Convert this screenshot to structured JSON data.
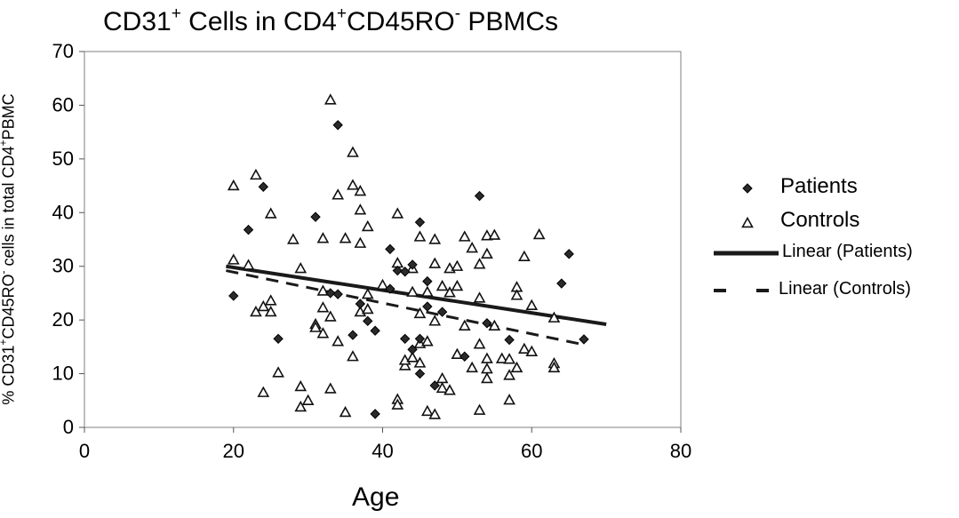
{
  "chart_data": {
    "type": "scatter",
    "title_parts": [
      "CD31",
      "+",
      " Cells in CD4",
      "+",
      "CD45RO",
      "-",
      " PBMCs"
    ],
    "xlabel": "Age",
    "ylabel_parts": [
      "% CD31",
      "+",
      "CD45RO",
      "-",
      " cells in total CD4",
      "+",
      "PBMC"
    ],
    "xlim": [
      0,
      80
    ],
    "ylim": [
      0,
      70
    ],
    "xticks": [
      "0",
      "20",
      "40",
      "60",
      "80"
    ],
    "yticks": [
      "0",
      "10",
      "20",
      "30",
      "40",
      "50",
      "60",
      "70"
    ],
    "grid": false,
    "legend_position": "right",
    "series": [
      {
        "name": "Patients",
        "marker": "diamond",
        "color": "#222222",
        "points": [
          [
            20,
            24.5
          ],
          [
            22,
            36.8
          ],
          [
            24,
            44.8
          ],
          [
            26,
            16.5
          ],
          [
            31,
            39.2
          ],
          [
            33,
            25
          ],
          [
            34,
            56.3
          ],
          [
            34,
            24.8
          ],
          [
            36,
            17.2
          ],
          [
            37,
            23
          ],
          [
            38,
            19.8
          ],
          [
            39,
            18
          ],
          [
            39,
            2.5
          ],
          [
            41,
            25.8
          ],
          [
            41,
            33.2
          ],
          [
            42,
            29.2
          ],
          [
            43,
            16.5
          ],
          [
            43,
            29
          ],
          [
            44,
            14.5
          ],
          [
            44,
            30.3
          ],
          [
            45,
            38.2
          ],
          [
            45,
            10
          ],
          [
            45,
            16.5
          ],
          [
            46,
            27.2
          ],
          [
            46,
            22.5
          ],
          [
            47,
            7.8
          ],
          [
            48,
            21.5
          ],
          [
            51,
            13.2
          ],
          [
            53,
            43.1
          ],
          [
            54,
            19.4
          ],
          [
            57,
            16.3
          ],
          [
            64,
            26.8
          ],
          [
            65,
            32.3
          ],
          [
            67,
            16.4
          ]
        ]
      },
      {
        "name": "Controls",
        "marker": "triangle",
        "color": "#222222",
        "points": [
          [
            20,
            45
          ],
          [
            20,
            31.2
          ],
          [
            22,
            30.2
          ],
          [
            23,
            47
          ],
          [
            23,
            21.5
          ],
          [
            24,
            6.5
          ],
          [
            24,
            22.5
          ],
          [
            25,
            39.8
          ],
          [
            25,
            21.5
          ],
          [
            25,
            23.6
          ],
          [
            26,
            10.2
          ],
          [
            28,
            35
          ],
          [
            29,
            29.6
          ],
          [
            29,
            7.6
          ],
          [
            29,
            3.8
          ],
          [
            30,
            5
          ],
          [
            31,
            19.2
          ],
          [
            31,
            18.6
          ],
          [
            32,
            35.2
          ],
          [
            32,
            17.5
          ],
          [
            32,
            22.3
          ],
          [
            32,
            25.4
          ],
          [
            33,
            61
          ],
          [
            33,
            7.2
          ],
          [
            33,
            20.6
          ],
          [
            34,
            43.3
          ],
          [
            34,
            16
          ],
          [
            35,
            35.2
          ],
          [
            35,
            2.8
          ],
          [
            36,
            51.2
          ],
          [
            36,
            45.1
          ],
          [
            36,
            13.2
          ],
          [
            37,
            44
          ],
          [
            37,
            40.5
          ],
          [
            37,
            34.3
          ],
          [
            37,
            21.5
          ],
          [
            38,
            24.8
          ],
          [
            38,
            22
          ],
          [
            38,
            37.4
          ],
          [
            40,
            26.5
          ],
          [
            42,
            39.8
          ],
          [
            42,
            30.6
          ],
          [
            42,
            5.2
          ],
          [
            42,
            4.2
          ],
          [
            43,
            11.5
          ],
          [
            43,
            12.5
          ],
          [
            44,
            29.6
          ],
          [
            44,
            25.2
          ],
          [
            44,
            13
          ],
          [
            45,
            35.5
          ],
          [
            45,
            21.2
          ],
          [
            45,
            15.6
          ],
          [
            45,
            12
          ],
          [
            46,
            25.2
          ],
          [
            46,
            16
          ],
          [
            46,
            3
          ],
          [
            47,
            35
          ],
          [
            47,
            30.5
          ],
          [
            47,
            19.8
          ],
          [
            47,
            2.4
          ],
          [
            48,
            26.3
          ],
          [
            48,
            9.1
          ],
          [
            48,
            7.3
          ],
          [
            49,
            29.6
          ],
          [
            49,
            25.1
          ],
          [
            49,
            6.9
          ],
          [
            50,
            30
          ],
          [
            50,
            26.3
          ],
          [
            50,
            13.6
          ],
          [
            51,
            35.5
          ],
          [
            51,
            18.9
          ],
          [
            52,
            33.4
          ],
          [
            52,
            11.1
          ],
          [
            53,
            30.4
          ],
          [
            53,
            24.1
          ],
          [
            53,
            15.5
          ],
          [
            53,
            3.2
          ],
          [
            54,
            35.7
          ],
          [
            54,
            32.3
          ],
          [
            54,
            12.8
          ],
          [
            54,
            10.9
          ],
          [
            54,
            9.1
          ],
          [
            55,
            35.8
          ],
          [
            55,
            18.9
          ],
          [
            56,
            12.8
          ],
          [
            57,
            12.7
          ],
          [
            57,
            9.7
          ],
          [
            57,
            5.1
          ],
          [
            58,
            26.1
          ],
          [
            58,
            24.6
          ],
          [
            58,
            11.1
          ],
          [
            59,
            31.8
          ],
          [
            59,
            14.6
          ],
          [
            60,
            22.7
          ],
          [
            60,
            14.1
          ],
          [
            61,
            35.9
          ],
          [
            63,
            20.4
          ],
          [
            63,
            11.9
          ],
          [
            63,
            11.1
          ]
        ]
      }
    ],
    "trendlines": [
      {
        "name": "Linear (Patients)",
        "style": "solid",
        "color": "#1a1a1a",
        "x": [
          19,
          70
        ],
        "y": [
          30,
          19.2
        ]
      },
      {
        "name": "Linear (Controls)",
        "style": "dashed",
        "color": "#1a1a1a",
        "x": [
          19,
          67
        ],
        "y": [
          29.2,
          15.4
        ]
      }
    ]
  }
}
